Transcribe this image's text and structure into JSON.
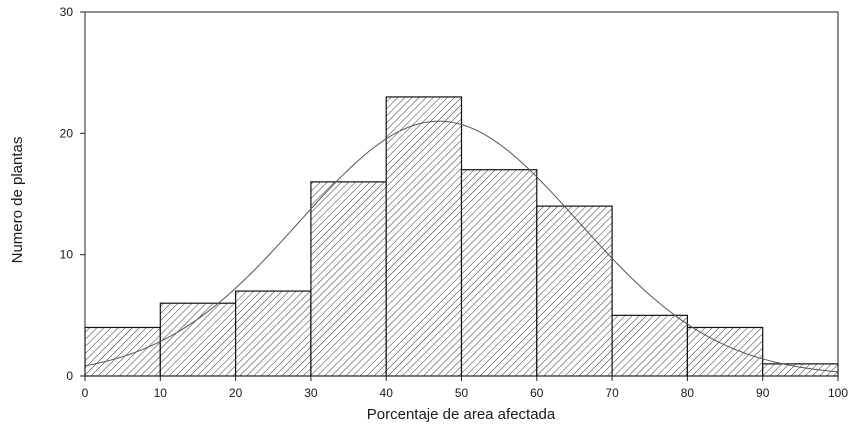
{
  "chart_data": {
    "type": "bar",
    "subtype": "histogram",
    "xlabel": "Porcentaje de area afectada",
    "ylabel": "Numero de plantas",
    "xlim": [
      0,
      100
    ],
    "ylim": [
      0,
      30
    ],
    "x_ticks": [
      "0",
      "10",
      "20",
      "30",
      "40",
      "50",
      "60",
      "70",
      "80",
      "90",
      "100"
    ],
    "y_ticks": [
      "0",
      "10",
      "20",
      "30"
    ],
    "bins": [
      {
        "start": 0,
        "end": 10,
        "value": 4
      },
      {
        "start": 10,
        "end": 20,
        "value": 6
      },
      {
        "start": 20,
        "end": 30,
        "value": 7
      },
      {
        "start": 30,
        "end": 40,
        "value": 16
      },
      {
        "start": 40,
        "end": 50,
        "value": 23
      },
      {
        "start": 50,
        "end": 60,
        "value": 17
      },
      {
        "start": 60,
        "end": 70,
        "value": 14
      },
      {
        "start": 70,
        "end": 80,
        "value": 5
      },
      {
        "start": 80,
        "end": 90,
        "value": 4
      },
      {
        "start": 90,
        "end": 100,
        "value": 1
      }
    ],
    "fitted_curve": {
      "type": "normal",
      "mean": 47,
      "peak": 21,
      "sd": 18.5
    },
    "grid": false,
    "legend": "none",
    "bar_fill": "diagonal-hatch",
    "colors": {
      "bar_stroke": "#111111",
      "hatch": "#333333",
      "curve": "#555555",
      "axis": "#222222"
    }
  }
}
